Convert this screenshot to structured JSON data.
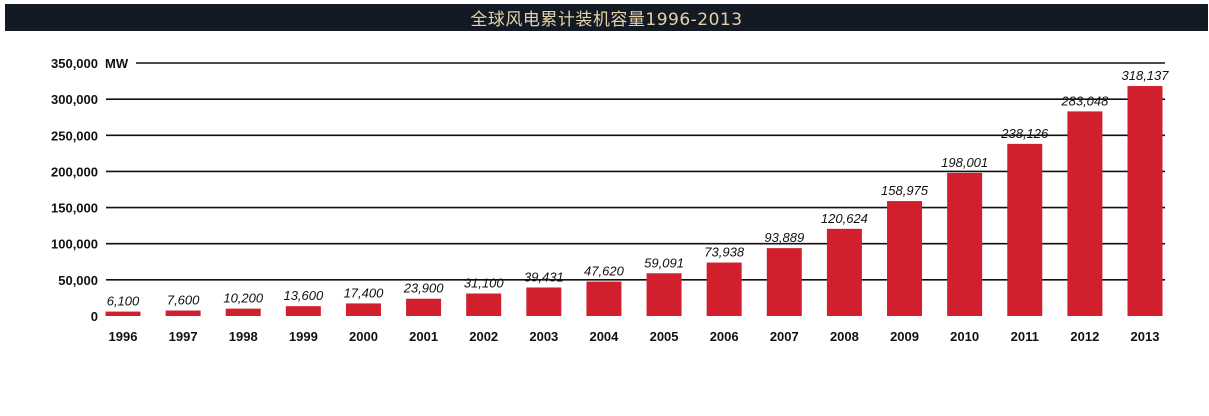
{
  "chart_data": {
    "type": "bar",
    "title": "全球风电累计装机容量1996-2013",
    "ylabel": "MW",
    "categories": [
      "1996",
      "1997",
      "1998",
      "1999",
      "2000",
      "2001",
      "2002",
      "2003",
      "2004",
      "2005",
      "2006",
      "2007",
      "2008",
      "2009",
      "2010",
      "2011",
      "2012",
      "2013"
    ],
    "values": [
      6100,
      7600,
      10200,
      13600,
      17400,
      23900,
      31100,
      39431,
      47620,
      59091,
      73938,
      93889,
      120624,
      158975,
      198001,
      238126,
      283048,
      318137
    ],
    "value_labels": [
      "6,100",
      "7,600",
      "10,200",
      "13,600",
      "17,400",
      "23,900",
      "31,100",
      "39,431",
      "47,620",
      "59,091",
      "73,938",
      "93,889",
      "120,624",
      "158,975",
      "198,001",
      "238,126",
      "283,048",
      "318,137"
    ],
    "yticks": [
      0,
      50000,
      100000,
      150000,
      200000,
      250000,
      300000,
      350000
    ],
    "ytick_labels": [
      "0",
      "50,000",
      "100,000",
      "150,000",
      "200,000",
      "250,000",
      "300,000",
      "350,000"
    ],
    "ylim": [
      0,
      350000
    ],
    "grid": true,
    "bar_color": "#d21f2e"
  }
}
